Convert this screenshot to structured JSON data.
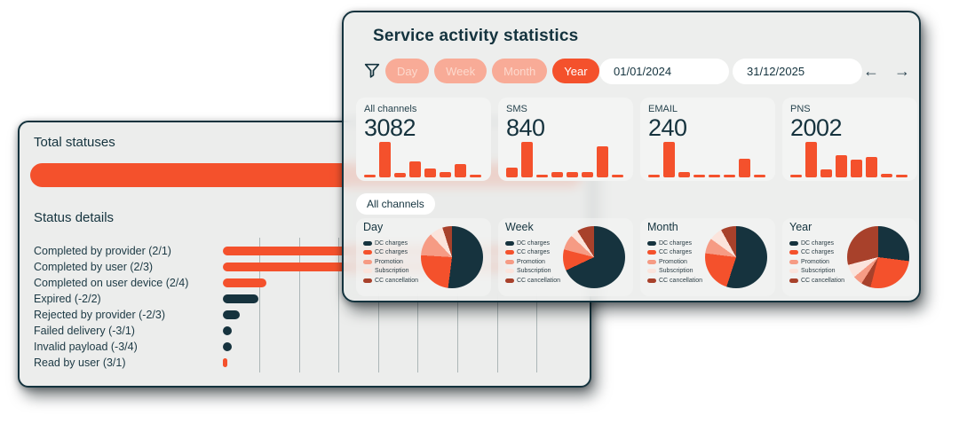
{
  "palette": {
    "navy": "#16333e",
    "orange": "#f4512c",
    "salmon": "#f69b84",
    "pink": "#fbe4dc",
    "brick": "#a8412b"
  },
  "left_card": {
    "total_title": "Total statuses",
    "details_title": "Status details",
    "chart_data": {
      "type": "bar",
      "orientation": "horizontal",
      "gridline_count": 8,
      "rows": [
        {
          "label": "Completed by provider (2/1)",
          "value": 322,
          "color": "orange"
        },
        {
          "label": "Completed by user (2/3)",
          "value": 322,
          "color": "orange"
        },
        {
          "label": "Completed on user device (2/4)",
          "value": 49,
          "color": "orange"
        },
        {
          "label": "Expired (-2/2)",
          "value": 40,
          "color": "navy"
        },
        {
          "label": "Rejected by provider (-2/3)",
          "value": 19,
          "color": "navy"
        },
        {
          "label": "Failed delivery (-3/1)",
          "value": 10,
          "color": "navy"
        },
        {
          "label": "Invalid payload (-3/4)",
          "value": 10,
          "color": "navy"
        },
        {
          "label": "Read by user (3/1)",
          "value": 5,
          "color": "orange"
        }
      ]
    }
  },
  "right_card": {
    "title": "Service activity statistics",
    "filters": {
      "options": [
        {
          "label": "Day",
          "active": false
        },
        {
          "label": "Week",
          "active": false
        },
        {
          "label": "Month",
          "active": false
        },
        {
          "label": "Year",
          "active": true
        }
      ],
      "date_from": "01/01/2024",
      "date_to": "31/12/2025",
      "prev_glyph": "←",
      "next_glyph": "→"
    },
    "stats": [
      {
        "label": "All channels",
        "value": "3082",
        "bars": [
          6,
          100,
          13,
          46,
          24,
          15,
          38,
          8
        ]
      },
      {
        "label": "SMS",
        "value": "840",
        "bars": [
          28,
          100,
          6,
          14,
          16,
          16,
          88,
          8
        ]
      },
      {
        "label": "EMAIL",
        "value": "240",
        "bars": [
          5,
          100,
          15,
          5,
          5,
          6,
          52,
          5
        ]
      },
      {
        "label": "PNS",
        "value": "2002",
        "bars": [
          8,
          100,
          22,
          62,
          50,
          58,
          10,
          6
        ]
      }
    ],
    "channel_tab": "All channels",
    "legend": [
      {
        "label": "DC charges",
        "color": "navy"
      },
      {
        "label": "CC charges",
        "color": "orange"
      },
      {
        "label": "Promotion",
        "color": "salmon"
      },
      {
        "label": "Subscription",
        "color": "pink"
      },
      {
        "label": "CC cancellation",
        "color": "brick"
      }
    ],
    "pies": [
      {
        "title": "Day",
        "slices": [
          {
            "label": "DC charges",
            "value": 52,
            "color": "navy"
          },
          {
            "label": "CC charges",
            "value": 24,
            "color": "orange"
          },
          {
            "label": "Promotion",
            "value": 12,
            "color": "salmon"
          },
          {
            "label": "Subscription",
            "value": 7,
            "color": "pink"
          },
          {
            "label": "CC cancellation",
            "value": 5,
            "color": "brick"
          }
        ]
      },
      {
        "title": "Week",
        "slices": [
          {
            "label": "DC charges",
            "value": 68,
            "color": "navy"
          },
          {
            "label": "CC charges",
            "value": 11,
            "color": "orange"
          },
          {
            "label": "Promotion",
            "value": 8,
            "color": "salmon"
          },
          {
            "label": "Subscription",
            "value": 4,
            "color": "pink"
          },
          {
            "label": "CC cancellation",
            "value": 9,
            "color": "brick"
          }
        ]
      },
      {
        "title": "Month",
        "slices": [
          {
            "label": "DC charges",
            "value": 55,
            "color": "navy"
          },
          {
            "label": "CC charges",
            "value": 22,
            "color": "orange"
          },
          {
            "label": "Promotion",
            "value": 8,
            "color": "salmon"
          },
          {
            "label": "Subscription",
            "value": 7,
            "color": "pink"
          },
          {
            "label": "CC cancellation",
            "value": 8,
            "color": "brick"
          }
        ]
      },
      {
        "title": "Year",
        "slices": [
          {
            "label": "DC charges",
            "value": 27,
            "color": "navy"
          },
          {
            "label": "CC charges",
            "value": 27,
            "color": "orange"
          },
          {
            "label": "CC cancellation",
            "value": 5,
            "color": "brick"
          },
          {
            "label": "Promotion",
            "value": 5,
            "color": "salmon"
          },
          {
            "label": "Subscription",
            "value": 7,
            "color": "pink"
          },
          {
            "label": "CC cancellation",
            "value": 29,
            "color": "brick"
          }
        ]
      }
    ]
  }
}
